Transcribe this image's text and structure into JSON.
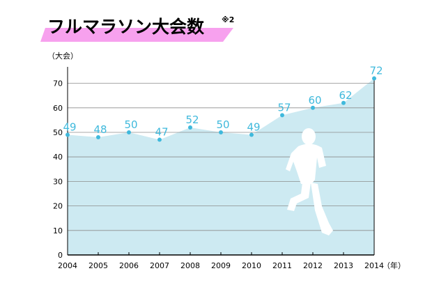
{
  "chart_data": {
    "type": "area",
    "title": "フルマラソン大会数",
    "title_note": "※2",
    "ylabel": "（大会）",
    "xlabel": "（年）",
    "categories": [
      "2004",
      "2005",
      "2006",
      "2007",
      "2008",
      "2009",
      "2010",
      "2011",
      "2012",
      "2013",
      "2014"
    ],
    "values": [
      49,
      48,
      50,
      47,
      52,
      50,
      49,
      57,
      60,
      62,
      72
    ],
    "ylim": [
      0,
      75
    ],
    "yticks": [
      0,
      10,
      20,
      30,
      40,
      50,
      60,
      70
    ],
    "grid": true,
    "colors": {
      "area": "#cdeaf2",
      "marker": "#3fb9dc",
      "label": "#3fb9dc",
      "gridline": "#8c8c8c",
      "title_highlight": "#f7a1ee",
      "runner": "#ffffff"
    }
  }
}
